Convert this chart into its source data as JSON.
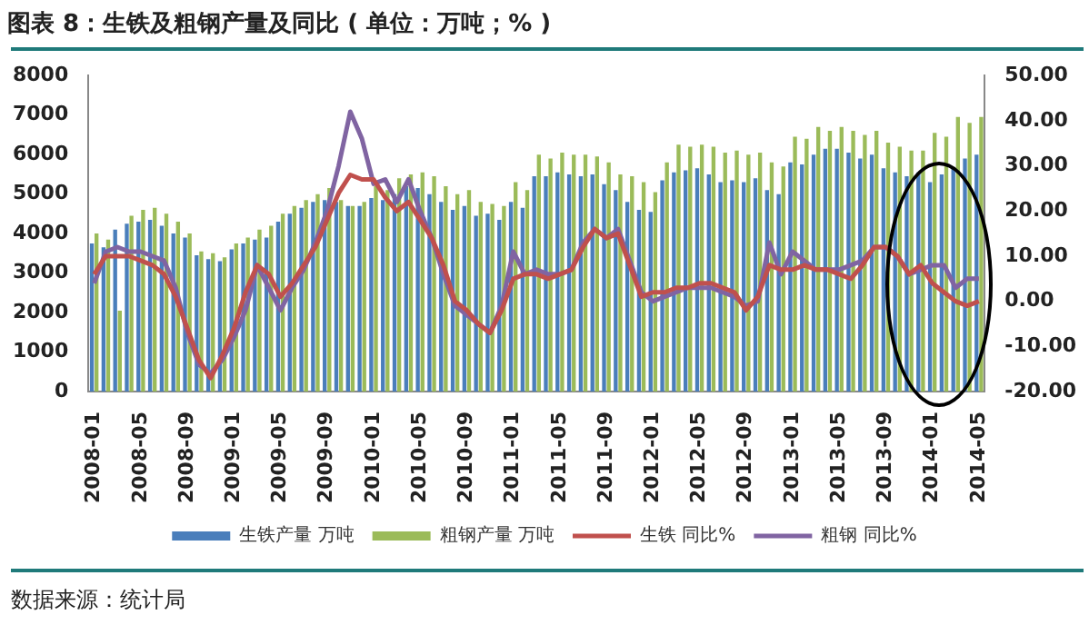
{
  "chart_data": {
    "type": "bar",
    "title": "图表 8：生铁及粗钢产量及同比 ( 单位：万吨；% )",
    "categories": [
      "2008-01",
      null,
      null,
      null,
      "2008-05",
      null,
      null,
      null,
      "2008-09",
      null,
      null,
      null,
      "2009-01",
      null,
      null,
      null,
      "2009-05",
      null,
      null,
      null,
      "2009-09",
      null,
      null,
      null,
      "2010-01",
      null,
      null,
      null,
      "2010-05",
      null,
      null,
      null,
      "2010-09",
      null,
      null,
      null,
      "2011-01",
      null,
      null,
      null,
      "2011-05",
      null,
      null,
      null,
      "2011-09",
      null,
      null,
      null,
      "2012-01",
      null,
      null,
      null,
      "2012-05",
      null,
      null,
      null,
      "2012-09",
      null,
      null,
      null,
      "2013-01",
      null,
      null,
      null,
      "2013-05",
      null,
      null,
      null,
      "2013-09",
      null,
      null,
      null,
      "2014-01",
      null,
      null,
      null,
      "2014-05"
    ],
    "series": [
      {
        "name": "生铁产量 万吨",
        "color": "#4a7ebb",
        "values": [
          3750,
          3650,
          4100,
          4250,
          4300,
          4350,
          4200,
          4000,
          3900,
          3450,
          3350,
          3300,
          3600,
          3750,
          3850,
          3900,
          4300,
          4500,
          4650,
          4800,
          4850,
          4800,
          4700,
          4700,
          4900,
          4850,
          5000,
          5200,
          5150,
          5000,
          4800,
          4600,
          4700,
          4450,
          4500,
          4350,
          4800,
          4650,
          5450,
          5450,
          5550,
          5500,
          5450,
          5500,
          5250,
          5100,
          4800,
          4600,
          4550,
          5350,
          5550,
          5600,
          5650,
          5500,
          5300,
          5350,
          5300,
          5400,
          5100,
          5000,
          5800,
          5750,
          6000,
          6150,
          6150,
          6050,
          5900,
          6000,
          5650,
          5550,
          5450,
          5550,
          5300,
          5500,
          5650,
          5900,
          6000
        ]
      },
      {
        "name": "粗钢产量 万吨",
        "color": "#9bbb59",
        "values": [
          4000,
          3850,
          2050,
          4450,
          4600,
          4650,
          4500,
          4300,
          4000,
          3550,
          3500,
          3400,
          3750,
          3900,
          4100,
          4200,
          4500,
          4700,
          4850,
          5000,
          5150,
          4850,
          4700,
          4800,
          5200,
          5100,
          5400,
          5500,
          5550,
          5450,
          5200,
          5000,
          5100,
          4800,
          4750,
          4700,
          5300,
          5100,
          6000,
          5900,
          6050,
          6000,
          6000,
          5950,
          5800,
          5500,
          5450,
          5300,
          5050,
          5800,
          6250,
          6200,
          6250,
          6200,
          6050,
          6100,
          6000,
          6050,
          5800,
          5700,
          6450,
          6400,
          6700,
          6600,
          6700,
          6600,
          6500,
          6600,
          6300,
          6200,
          6100,
          6100,
          6550,
          6450,
          6950,
          6800,
          6950
        ]
      },
      {
        "name": "生铁 同比%",
        "type": "line",
        "axis": "y2",
        "color": "#c0504d",
        "values": [
          6,
          10,
          10,
          10,
          9,
          8,
          6,
          1,
          -6,
          -13,
          -17,
          -12,
          -6,
          2,
          8,
          6,
          1,
          4,
          8,
          12,
          18,
          24,
          28,
          27,
          27,
          23,
          20,
          22,
          18,
          14,
          8,
          0,
          -2,
          -5,
          -7,
          -2,
          5,
          6,
          6,
          5,
          6,
          7,
          12,
          16,
          14,
          15,
          8,
          1,
          2,
          2,
          3,
          3,
          4,
          4,
          3,
          2,
          -2,
          1,
          8,
          7,
          7,
          8,
          7,
          7,
          6,
          5,
          8,
          12,
          12,
          10,
          6,
          8,
          4,
          2,
          0,
          -1,
          0
        ]
      },
      {
        "name": "粗钢 同比%",
        "type": "line",
        "axis": "y2",
        "color": "#8064a2",
        "values": [
          4,
          11,
          12,
          11,
          11,
          10,
          9,
          3,
          -7,
          -14,
          -16,
          -13,
          -8,
          -2,
          8,
          3,
          -2,
          3,
          7,
          13,
          20,
          30,
          42,
          36,
          26,
          27,
          22,
          27,
          20,
          14,
          6,
          -1,
          -3,
          -5,
          -7,
          -1,
          11,
          6,
          7,
          6,
          6,
          7,
          13,
          16,
          14,
          16,
          9,
          2,
          0,
          1,
          2,
          3,
          3,
          3,
          2,
          1,
          -1,
          0,
          13,
          6,
          11,
          9,
          7,
          7,
          7,
          8,
          9,
          12,
          12,
          10,
          6,
          7,
          8,
          8,
          3,
          5,
          5
        ]
      }
    ],
    "ylim": [
      0,
      8000
    ],
    "yticks": [
      0,
      1000,
      2000,
      3000,
      4000,
      5000,
      6000,
      7000,
      8000
    ],
    "y2lim": [
      -20,
      50
    ],
    "y2ticks": [
      {
        "value": -20,
        "label": "-20.00"
      },
      {
        "value": -10,
        "label": "-10.00"
      },
      {
        "value": 0,
        "label": "0.00"
      },
      {
        "value": 10,
        "label": "10.00"
      },
      {
        "value": 20,
        "label": "20.00"
      },
      {
        "value": 30,
        "label": "30.00"
      },
      {
        "value": 40,
        "label": "40.00"
      },
      {
        "value": 50,
        "label": "50.00"
      }
    ],
    "legend": "bottom",
    "annotations": [
      "数据来源：统计局"
    ]
  }
}
